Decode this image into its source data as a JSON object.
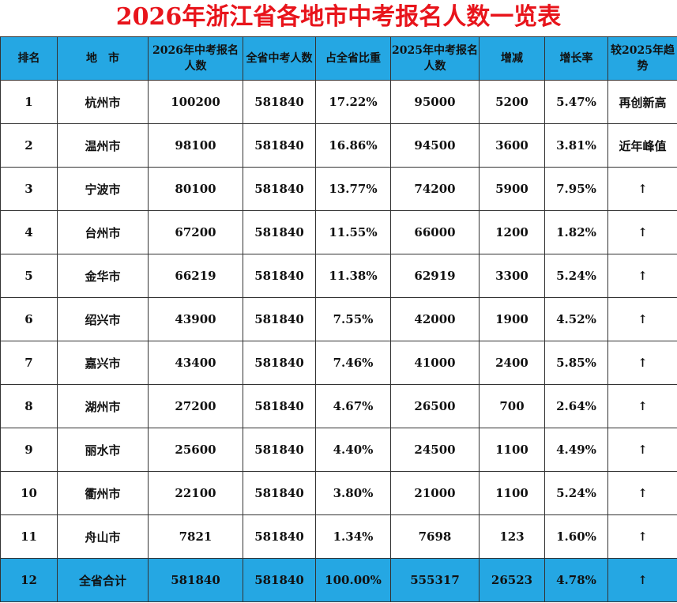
{
  "title": "2026年浙江省各地市中考报名人数一览表",
  "header": [
    "排名",
    "地　市",
    "2026年中考报名人数",
    "全省中考人数",
    "占全省比重",
    "2025年中考报名人数",
    "增减",
    "增长率",
    "较2025年趋势"
  ],
  "rows": [
    {
      "rank": "1",
      "city": "杭州市",
      "n2026": "100200",
      "total": "581840",
      "share": "17.22%",
      "n2025": "95000",
      "diff": "5200",
      "rate": "5.47%",
      "trend": "再创新高"
    },
    {
      "rank": "2",
      "city": "温州市",
      "n2026": "98100",
      "total": "581840",
      "share": "16.86%",
      "n2025": "94500",
      "diff": "3600",
      "rate": "3.81%",
      "trend": "近年峰值"
    },
    {
      "rank": "3",
      "city": "宁波市",
      "n2026": "80100",
      "total": "581840",
      "share": "13.77%",
      "n2025": "74200",
      "diff": "5900",
      "rate": "7.95%",
      "trend": "↑"
    },
    {
      "rank": "4",
      "city": "台州市",
      "n2026": "67200",
      "total": "581840",
      "share": "11.55%",
      "n2025": "66000",
      "diff": "1200",
      "rate": "1.82%",
      "trend": "↑"
    },
    {
      "rank": "5",
      "city": "金华市",
      "n2026": "66219",
      "total": "581840",
      "share": "11.38%",
      "n2025": "62919",
      "diff": "3300",
      "rate": "5.24%",
      "trend": "↑"
    },
    {
      "rank": "6",
      "city": "绍兴市",
      "n2026": "43900",
      "total": "581840",
      "share": "7.55%",
      "n2025": "42000",
      "diff": "1900",
      "rate": "4.52%",
      "trend": "↑"
    },
    {
      "rank": "7",
      "city": "嘉兴市",
      "n2026": "43400",
      "total": "581840",
      "share": "7.46%",
      "n2025": "41000",
      "diff": "2400",
      "rate": "5.85%",
      "trend": "↑"
    },
    {
      "rank": "8",
      "city": "湖州市",
      "n2026": "27200",
      "total": "581840",
      "share": "4.67%",
      "n2025": "26500",
      "diff": "700",
      "rate": "2.64%",
      "trend": "↑"
    },
    {
      "rank": "9",
      "city": "丽水市",
      "n2026": "25600",
      "total": "581840",
      "share": "4.40%",
      "n2025": "24500",
      "diff": "1100",
      "rate": "4.49%",
      "trend": "↑"
    },
    {
      "rank": "10",
      "city": "衢州市",
      "n2026": "22100",
      "total": "581840",
      "share": "3.80%",
      "n2025": "21000",
      "diff": "1100",
      "rate": "5.24%",
      "trend": "↑"
    },
    {
      "rank": "11",
      "city": "舟山市",
      "n2026": "7821",
      "total": "581840",
      "share": "1.34%",
      "n2025": "7698",
      "diff": "123",
      "rate": "1.60%",
      "trend": "↑"
    },
    {
      "rank": "12",
      "city": "全省合计",
      "n2026": "581840",
      "total": "581840",
      "share": "100.00%",
      "n2025": "555317",
      "diff": "26523",
      "rate": "4.78%",
      "trend": "↑"
    }
  ],
  "colors": {
    "title": "#e8141b",
    "header_bg": "#25a7e3",
    "total_row_bg": "#25a7e3",
    "border": "#333333"
  }
}
